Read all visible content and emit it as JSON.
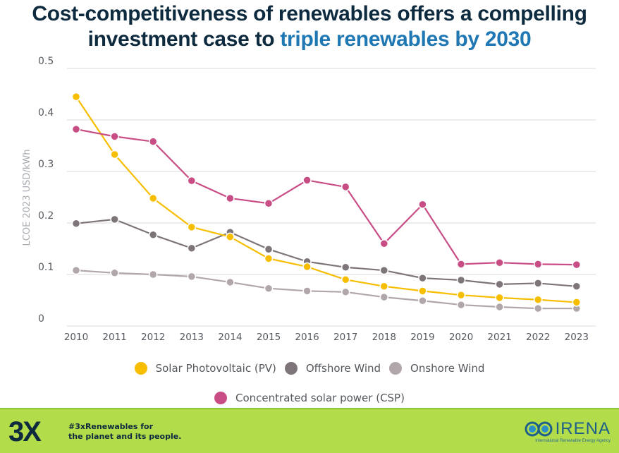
{
  "title": {
    "line1": "Cost-competitiveness of renewables offers a compelling",
    "line2_prefix": "investment case to ",
    "line2_highlight": "triple renewables by 2030"
  },
  "colors": {
    "title": "#0d2a3f",
    "highlight": "#1f78b4",
    "footer_bg": "#b3dc4a"
  },
  "chart_data": {
    "type": "line",
    "title": "Cost-competitiveness of renewables offers a compelling investment case to triple renewables by 2030",
    "xlabel": "",
    "ylabel": "LCOE 2023 USD/kWh",
    "x": [
      "2010",
      "2011",
      "2012",
      "2013",
      "2014",
      "2015",
      "2016",
      "2017",
      "2018",
      "2019",
      "2020",
      "2021",
      "2022",
      "2023"
    ],
    "ylim": [
      0,
      0.5
    ],
    "yticks": [
      0,
      0.1,
      0.2,
      0.3,
      0.4,
      0.5
    ],
    "ytick_labels": [
      "0",
      "0.1",
      "0.2",
      "0.3",
      "0.4",
      "0.5"
    ],
    "grid": true,
    "legend_position": "bottom",
    "series": [
      {
        "name": "Solar Photovoltaic (PV)",
        "color": "#f7be00",
        "values": [
          0.445,
          0.333,
          0.248,
          0.192,
          0.173,
          0.131,
          0.115,
          0.09,
          0.077,
          0.068,
          0.06,
          0.055,
          0.051,
          0.046
        ]
      },
      {
        "name": "Offshore Wind",
        "color": "#7d7579",
        "values": [
          0.199,
          0.207,
          0.177,
          0.151,
          0.182,
          0.149,
          0.125,
          0.114,
          0.108,
          0.093,
          0.089,
          0.081,
          0.083,
          0.077
        ]
      },
      {
        "name": "Onshore Wind",
        "color": "#b1a7ab",
        "values": [
          0.108,
          0.103,
          0.1,
          0.096,
          0.085,
          0.073,
          0.068,
          0.066,
          0.056,
          0.049,
          0.041,
          0.037,
          0.034,
          0.034
        ]
      },
      {
        "name": "Concentrated solar power (CSP)",
        "color": "#c94d85",
        "values": [
          0.382,
          0.368,
          0.358,
          0.282,
          0.248,
          0.238,
          0.283,
          0.27,
          0.16,
          0.236,
          0.12,
          0.123,
          0.12,
          0.119
        ]
      }
    ]
  },
  "legend": {
    "row1": [
      {
        "label": "Solar Photovoltaic (PV)",
        "color": "#f7be00"
      },
      {
        "label": "Offshore Wind",
        "color": "#7d7579"
      },
      {
        "label": "Onshore Wind",
        "color": "#b1a7ab"
      }
    ],
    "row2": [
      {
        "label": "Concentrated solar power (CSP)",
        "color": "#c94d85"
      }
    ]
  },
  "footer": {
    "logo_text": "3X",
    "tagline_line1": "#3xRenewables for",
    "tagline_line2": "the planet and its people.",
    "org_name": "IRENA",
    "org_full_name": "International Renewable Energy Agency"
  }
}
